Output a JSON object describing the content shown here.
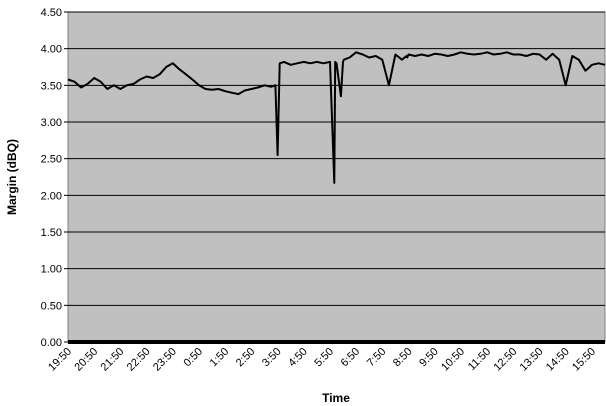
{
  "chart_data": {
    "type": "line",
    "title": "",
    "xlabel": "Time",
    "ylabel": "Margin (dBQ)",
    "ylim": [
      0,
      4.5
    ],
    "grid": true,
    "legend": "none",
    "colors": {
      "plot_background": "#c0c0c0",
      "line": "#000000",
      "gridline": "#000000"
    },
    "y_ticks": [
      "0.00",
      "0.50",
      "1.00",
      "1.50",
      "2.00",
      "2.50",
      "3.00",
      "3.50",
      "4.00",
      "4.50"
    ],
    "x_ticks": [
      "19:50",
      "20:50",
      "21:50",
      "22:50",
      "23:50",
      "0:50",
      "1:50",
      "2:50",
      "3:50",
      "4:50",
      "5:50",
      "6:50",
      "7:50",
      "8:50",
      "9:50",
      "10:50",
      "11:50",
      "12:50",
      "13:50",
      "14:50",
      "15:50"
    ],
    "series": [
      {
        "x": [
          "19:50",
          "20:05",
          "20:20",
          "20:35",
          "20:50",
          "21:05",
          "21:20",
          "21:35",
          "21:50",
          "22:05",
          "22:20",
          "22:35",
          "22:50",
          "23:05",
          "23:20",
          "23:35",
          "23:50",
          "0:05",
          "0:20",
          "0:35",
          "0:50",
          "1:05",
          "1:20",
          "1:35",
          "1:50",
          "2:05",
          "2:20",
          "2:35",
          "2:50",
          "3:05",
          "3:20",
          "3:35",
          "3:45",
          "3:50",
          "3:55",
          "4:05",
          "4:20",
          "4:35",
          "4:50",
          "5:05",
          "5:20",
          "5:35",
          "5:50",
          "6:00",
          "6:02",
          "6:05",
          "6:15",
          "6:20",
          "6:22",
          "6:35",
          "6:50",
          "7:05",
          "7:20",
          "7:35",
          "7:50",
          "8:05",
          "8:20",
          "8:35",
          "8:45",
          "8:47",
          "8:50",
          "9:05",
          "9:20",
          "9:35",
          "9:50",
          "10:05",
          "10:20",
          "10:35",
          "10:50",
          "11:05",
          "11:20",
          "11:35",
          "11:50",
          "12:05",
          "12:20",
          "12:35",
          "12:50",
          "13:05",
          "13:20",
          "13:35",
          "13:50",
          "14:05",
          "14:20",
          "14:35",
          "14:50",
          "15:05",
          "15:20",
          "15:35",
          "15:45",
          "15:50",
          "16:05",
          "16:20"
        ],
        "y": [
          3.58,
          3.55,
          3.47,
          3.52,
          3.6,
          3.55,
          3.45,
          3.5,
          3.45,
          3.5,
          3.52,
          3.58,
          3.62,
          3.6,
          3.65,
          3.75,
          3.8,
          3.72,
          3.65,
          3.58,
          3.5,
          3.45,
          3.44,
          3.45,
          3.42,
          3.4,
          3.38,
          3.43,
          3.45,
          3.47,
          3.5,
          3.48,
          3.5,
          2.55,
          3.8,
          3.82,
          3.78,
          3.8,
          3.82,
          3.8,
          3.82,
          3.8,
          3.82,
          2.17,
          3.82,
          3.8,
          3.35,
          3.82,
          3.85,
          3.88,
          3.95,
          3.92,
          3.88,
          3.9,
          3.85,
          3.5,
          3.92,
          3.85,
          3.9,
          3.88,
          3.92,
          3.9,
          3.92,
          3.9,
          3.93,
          3.92,
          3.9,
          3.92,
          3.95,
          3.93,
          3.92,
          3.93,
          3.95,
          3.92,
          3.93,
          3.95,
          3.92,
          3.92,
          3.9,
          3.93,
          3.92,
          3.85,
          3.93,
          3.85,
          3.5,
          3.9,
          3.85,
          3.7,
          3.75,
          3.78,
          3.8,
          3.78
        ]
      }
    ]
  }
}
